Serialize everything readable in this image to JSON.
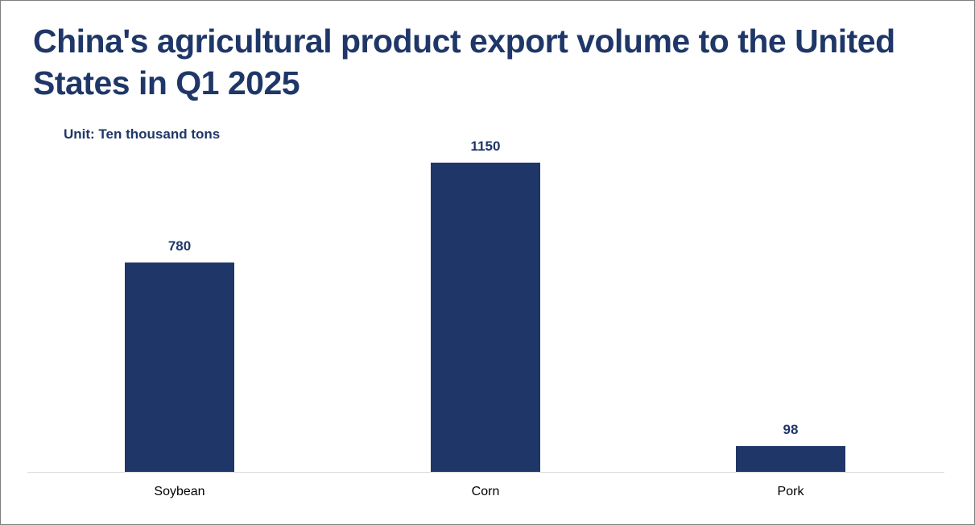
{
  "chart_data": {
    "type": "bar",
    "title": "China's agricultural product export volume to the United States in Q1 2025",
    "subtitle": "Unit: Ten thousand tons",
    "categories": [
      "Soybean",
      "Corn",
      "Pork"
    ],
    "values": [
      780,
      1150,
      98
    ],
    "xlabel": "",
    "ylabel": "",
    "ylim": [
      0,
      1150
    ],
    "grid": false,
    "legend": "none",
    "data_labels": true,
    "bar_color": "#1f3768"
  },
  "header": {
    "title": "China's agricultural product export volume to the United States in Q1 2025",
    "unit": "Unit: Ten thousand tons"
  },
  "bars": [
    {
      "category": "Soybean",
      "value": "780"
    },
    {
      "category": "Corn",
      "value": "1150"
    },
    {
      "category": "Pork",
      "value": "98"
    }
  ],
  "colors": {
    "bar": "#1f3768",
    "title": "#1f3768",
    "axis": "#d9d9d9",
    "frame": "#7f7f7f"
  }
}
